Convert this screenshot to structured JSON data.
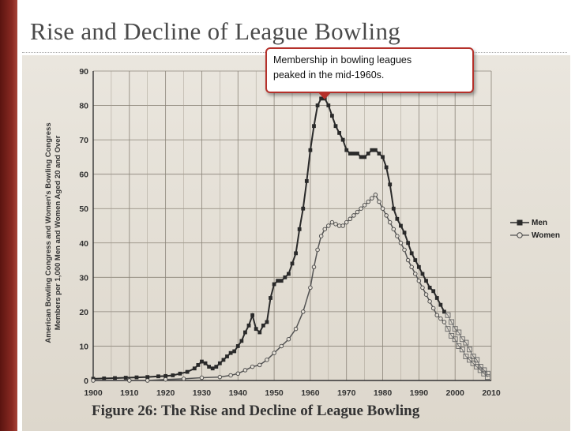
{
  "slide": {
    "title": "Rise and Decline of League Bowling",
    "callout_line1": "Membership in bowling leagues",
    "callout_line2": "peaked in the mid-1960s.",
    "figure_caption": "Figure 26: The Rise and Decline of League Bowling"
  },
  "colors": {
    "accent": "#8a2a22",
    "callout_border": "#b5302a",
    "series_line": "#2a2a2a"
  },
  "chart_data": {
    "type": "line",
    "title": "Figure 26: The Rise and Decline of League Bowling",
    "xlabel": "",
    "ylabel_line1": "American Bowling Congress and Women's Bowling Congress",
    "ylabel_line2": "Members per 1,000 Men and Women Aged 20 and Over",
    "xlim": [
      1900,
      2010
    ],
    "ylim": [
      0,
      90
    ],
    "x_ticks": [
      "1900",
      "1910",
      "1920",
      "1930",
      "1940",
      "1950",
      "1960",
      "1970",
      "1980",
      "1990",
      "2000",
      "2010"
    ],
    "y_ticks": [
      "0",
      "10",
      "20",
      "30",
      "40",
      "50",
      "60",
      "70",
      "80",
      "90"
    ],
    "grid": true,
    "legend_position": "right",
    "annotation": "Membership in bowling leagues peaked in the mid-1960s.",
    "series": [
      {
        "name": "Men",
        "marker": "filled-square",
        "x": [
          1900,
          1903,
          1906,
          1909,
          1912,
          1915,
          1918,
          1920,
          1922,
          1924,
          1926,
          1928,
          1929,
          1930,
          1931,
          1932,
          1933,
          1934,
          1935,
          1936,
          1937,
          1938,
          1939,
          1940,
          1941,
          1942,
          1943,
          1944,
          1945,
          1946,
          1947,
          1948,
          1949,
          1950,
          1951,
          1952,
          1953,
          1954,
          1955,
          1956,
          1957,
          1958,
          1959,
          1960,
          1961,
          1962,
          1963,
          1964,
          1965,
          1966,
          1967,
          1968,
          1969,
          1970,
          1971,
          1972,
          1973,
          1974,
          1975,
          1976,
          1977,
          1978,
          1979,
          1980,
          1981,
          1982,
          1983,
          1984,
          1985,
          1986,
          1987,
          1988,
          1989,
          1990,
          1991,
          1992,
          1993,
          1994,
          1995,
          1996,
          1997
        ],
        "values": [
          0.5,
          0.6,
          0.7,
          0.8,
          0.9,
          1,
          1.2,
          1.3,
          1.5,
          2,
          2.5,
          3.5,
          4.5,
          5.5,
          5,
          4,
          3.5,
          4,
          5,
          6,
          7,
          8,
          8.5,
          10,
          11.5,
          14,
          16,
          19,
          15,
          14,
          16,
          17,
          24,
          28,
          29,
          29,
          30,
          31,
          34,
          37,
          44,
          50,
          58,
          67,
          74,
          80,
          82,
          82,
          80,
          77,
          74,
          72,
          70,
          67,
          66,
          66,
          66,
          65,
          65,
          66,
          67,
          67,
          66,
          65,
          62,
          57,
          50,
          47,
          45,
          43,
          40,
          37,
          35,
          33,
          31,
          29,
          27,
          26,
          24,
          22,
          20
        ],
        "projected_x": [
          1998,
          1999,
          2000,
          2001,
          2002,
          2003,
          2004,
          2005,
          2006,
          2007,
          2008,
          2009
        ],
        "projected_values": [
          19,
          17,
          15,
          14,
          12,
          11,
          9,
          7,
          6,
          4,
          3,
          2
        ]
      },
      {
        "name": "Women",
        "marker": "open-circle",
        "x": [
          1900,
          1910,
          1915,
          1920,
          1925,
          1930,
          1935,
          1938,
          1940,
          1942,
          1944,
          1946,
          1948,
          1950,
          1952,
          1954,
          1956,
          1958,
          1960,
          1961,
          1962,
          1963,
          1964,
          1965,
          1966,
          1967,
          1968,
          1969,
          1970,
          1971,
          1972,
          1973,
          1974,
          1975,
          1976,
          1977,
          1978,
          1979,
          1980,
          1981,
          1982,
          1983,
          1984,
          1985,
          1986,
          1987,
          1988,
          1989,
          1990,
          1991,
          1992,
          1993,
          1994,
          1995,
          1996,
          1997
        ],
        "values": [
          0,
          0,
          0,
          0.3,
          0.5,
          0.8,
          1,
          1.5,
          2,
          3,
          4,
          4.5,
          6,
          8,
          10,
          12,
          15,
          20,
          27,
          33,
          38,
          42,
          44,
          45,
          46,
          45.5,
          45,
          45,
          46,
          47,
          48,
          49,
          50,
          51,
          52,
          53,
          54,
          52,
          50,
          48,
          46,
          44,
          42,
          40,
          38,
          35,
          33,
          31,
          29,
          27,
          25,
          23,
          21,
          19,
          18,
          17
        ],
        "projected_x": [
          1998,
          1999,
          2000,
          2001,
          2002,
          2003,
          2004,
          2005,
          2006,
          2007,
          2008,
          2009
        ],
        "projected_values": [
          15,
          13,
          12,
          10,
          9,
          7,
          6,
          5,
          4,
          3,
          2,
          1
        ]
      }
    ]
  }
}
